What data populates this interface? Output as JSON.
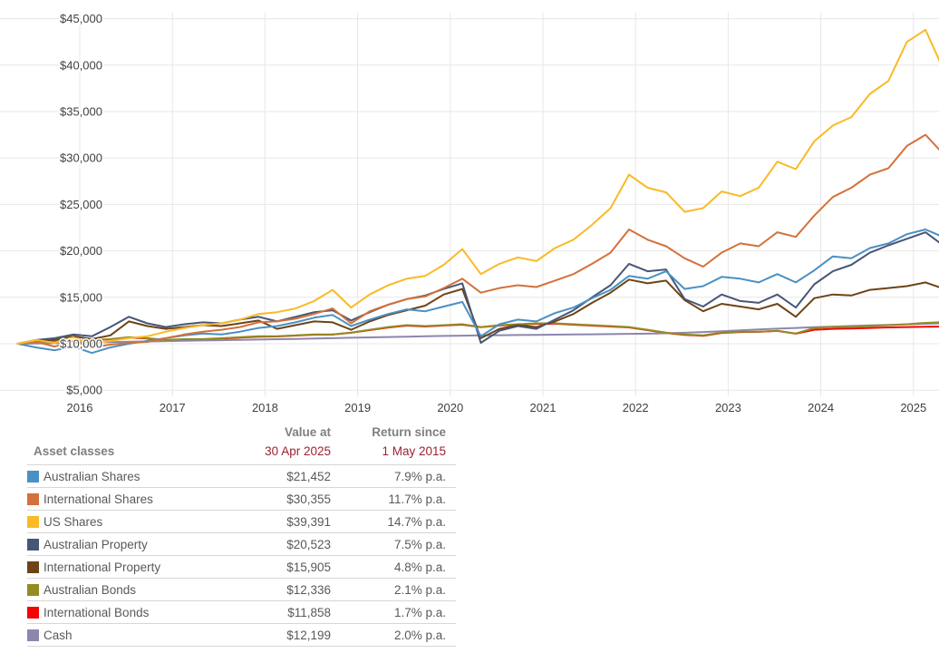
{
  "colors": {
    "grid": "#e7e7e7",
    "axis_text": "#404040",
    "table_text": "#595959",
    "header_gray": "#7f7f7f",
    "header_red": "#9c2130",
    "separator": "#d6d6d6"
  },
  "chart_data": {
    "type": "line",
    "title": "",
    "xlabel": "",
    "ylabel": "",
    "legend_position": "bottom-table",
    "grid": true,
    "x_axis": {
      "start_year": 2015.33,
      "step_years": 0.2,
      "tick_labels": [
        "2016",
        "2017",
        "2018",
        "2019",
        "2020",
        "2021",
        "2022",
        "2023",
        "2024",
        "2025"
      ],
      "tick_values": [
        2016,
        2017,
        2018,
        2019,
        2020,
        2021,
        2022,
        2023,
        2024,
        2025
      ]
    },
    "y_axis": {
      "tick_values": [
        5000,
        10000,
        15000,
        20000,
        25000,
        30000,
        35000,
        40000,
        45000
      ],
      "tick_prefix": "$",
      "ylim": [
        5000,
        45600
      ]
    },
    "series": [
      {
        "name": "Australian Shares",
        "color": "#4a90c4",
        "final_value": "$21,452",
        "return_pa": "7.9% p.a.",
        "values": [
          10000,
          9600,
          9300,
          9700,
          9000,
          9600,
          10000,
          10300,
          10600,
          10900,
          11100,
          11000,
          11300,
          11700,
          11900,
          12300,
          12800,
          13100,
          11900,
          12600,
          13200,
          13700,
          13500,
          14000,
          14500,
          10800,
          12100,
          12600,
          12400,
          13300,
          13900,
          14900,
          15800,
          17300,
          17000,
          17800,
          15900,
          16200,
          17200,
          17000,
          16600,
          17500,
          16600,
          17900,
          19400,
          19200,
          20300,
          20800,
          21800,
          22300,
          21452
        ]
      },
      {
        "name": "International Shares",
        "color": "#d4713b",
        "final_value": "$30,355",
        "return_pa": "11.7% p.a.",
        "values": [
          10000,
          10200,
          9700,
          10300,
          9600,
          9900,
          10100,
          10200,
          10600,
          11000,
          11300,
          11500,
          11800,
          12300,
          12400,
          12700,
          13200,
          13800,
          12200,
          13500,
          14200,
          14800,
          15100,
          16000,
          17000,
          15500,
          16000,
          16300,
          16100,
          16800,
          17500,
          18600,
          19800,
          22300,
          21200,
          20500,
          19200,
          18300,
          19800,
          20800,
          20500,
          22000,
          21500,
          23800,
          25800,
          26800,
          28200,
          28900,
          31300,
          32500,
          30355
        ]
      },
      {
        "name": "US Shares",
        "color": "#f9ba25",
        "final_value": "$39,391",
        "return_pa": "14.7% p.a.",
        "values": [
          10000,
          10400,
          10100,
          10700,
          9900,
          10300,
          10600,
          10800,
          11300,
          11700,
          12000,
          12200,
          12600,
          13200,
          13400,
          13800,
          14600,
          15800,
          13900,
          15300,
          16300,
          17000,
          17300,
          18500,
          20200,
          17500,
          18600,
          19300,
          18900,
          20300,
          21200,
          22800,
          24600,
          28200,
          26800,
          26300,
          24200,
          24600,
          26400,
          25900,
          26800,
          29600,
          28800,
          31800,
          33500,
          34400,
          36900,
          38300,
          42500,
          43800,
          39391
        ]
      },
      {
        "name": "Australian Property",
        "color": "#465677",
        "final_value": "$20,523",
        "return_pa": "7.5% p.a.",
        "values": [
          10000,
          10400,
          10600,
          11000,
          10800,
          11800,
          12900,
          12200,
          11800,
          12100,
          12300,
          12200,
          12600,
          12900,
          12400,
          12900,
          13400,
          13600,
          12500,
          13400,
          14200,
          14800,
          15200,
          15900,
          16500,
          10100,
          11400,
          11900,
          11600,
          12600,
          13600,
          15000,
          16300,
          18600,
          17800,
          18000,
          14800,
          14000,
          15300,
          14600,
          14400,
          15300,
          13900,
          16400,
          17800,
          18500,
          19800,
          20600,
          21300,
          22000,
          20523
        ]
      },
      {
        "name": "International Property",
        "color": "#6e4317",
        "final_value": "$15,905",
        "return_pa": "4.8% p.a.",
        "values": [
          10000,
          10300,
          10400,
          10800,
          10500,
          10900,
          12400,
          11900,
          11600,
          11800,
          12000,
          11900,
          12200,
          12500,
          11600,
          12000,
          12400,
          12300,
          11500,
          12400,
          13100,
          13600,
          14100,
          15300,
          15900,
          10600,
          11600,
          12000,
          11800,
          12400,
          13200,
          14400,
          15500,
          16900,
          16500,
          16800,
          14700,
          13500,
          14300,
          14000,
          13700,
          14300,
          12900,
          14900,
          15300,
          15200,
          15800,
          16000,
          16200,
          16600,
          15905
        ]
      },
      {
        "name": "Australian Bonds",
        "color": "#948b22",
        "final_value": "$12,336",
        "return_pa": "2.1% p.a.",
        "values": [
          10000,
          10200,
          10300,
          10300,
          10400,
          10500,
          10700,
          10600,
          10400,
          10500,
          10500,
          10600,
          10700,
          10800,
          10800,
          10900,
          11000,
          11000,
          11200,
          11500,
          11800,
          12000,
          11900,
          12000,
          12100,
          11800,
          12000,
          12100,
          12200,
          12200,
          12100,
          12000,
          11900,
          11800,
          11500,
          11200,
          11000,
          10900,
          11200,
          11300,
          11300,
          11400,
          11100,
          11700,
          11800,
          11800,
          11900,
          12000,
          12100,
          12250,
          12336
        ]
      },
      {
        "name": "International Bonds",
        "color": "#f40505",
        "final_value": "$11,858",
        "return_pa": "1.7% p.a.",
        "values": [
          10000,
          10150,
          10250,
          10280,
          10380,
          10480,
          10650,
          10560,
          10380,
          10460,
          10470,
          10560,
          10650,
          10760,
          10780,
          10880,
          10980,
          10990,
          11180,
          11460,
          11750,
          11950,
          11860,
          11960,
          12050,
          11780,
          11960,
          12060,
          12150,
          12160,
          12050,
          11950,
          11860,
          11760,
          11460,
          11160,
          10960,
          10860,
          11160,
          11260,
          11280,
          11380,
          11080,
          11500,
          11600,
          11640,
          11700,
          11760,
          11800,
          11830,
          11858
        ]
      },
      {
        "name": "Cash",
        "color": "#8b87ad",
        "final_value": "$12,199",
        "return_pa": "2.0% p.a.",
        "values": [
          10000,
          10030,
          10070,
          10100,
          10140,
          10170,
          10210,
          10240,
          10280,
          10310,
          10350,
          10380,
          10420,
          10450,
          10490,
          10520,
          10560,
          10600,
          10640,
          10680,
          10720,
          10760,
          10800,
          10840,
          10870,
          10900,
          10920,
          10940,
          10960,
          10980,
          11000,
          11020,
          11040,
          11060,
          11080,
          11120,
          11180,
          11260,
          11350,
          11440,
          11530,
          11620,
          11700,
          11780,
          11850,
          11910,
          11970,
          12030,
          12090,
          12150,
          12199
        ]
      }
    ],
    "draw_order": [
      6,
      7,
      5,
      4,
      3,
      0,
      1,
      2
    ]
  },
  "table": {
    "col1_header": "Asset classes",
    "col2_header": [
      "Value at",
      "30 Apr 2025"
    ],
    "col3_header": [
      "Return since",
      "1 May 2015"
    ],
    "rows": [
      {
        "label": "Australian Shares",
        "value": "$21,452",
        "return": "7.9% p.a.",
        "color": "#4a90c4"
      },
      {
        "label": "International Shares",
        "value": "$30,355",
        "return": "11.7% p.a.",
        "color": "#d4713b"
      },
      {
        "label": "US Shares",
        "value": "$39,391",
        "return": "14.7% p.a.",
        "color": "#f9ba25"
      },
      {
        "label": "Australian Property",
        "value": "$20,523",
        "return": "7.5% p.a.",
        "color": "#465677"
      },
      {
        "label": "International Property",
        "value": "$15,905",
        "return": "4.8% p.a.",
        "color": "#6e4317"
      },
      {
        "label": "Australian Bonds",
        "value": "$12,336",
        "return": "2.1% p.a.",
        "color": "#948b22"
      },
      {
        "label": "International Bonds",
        "value": "$11,858",
        "return": "1.7% p.a.",
        "color": "#f40505"
      },
      {
        "label": "Cash",
        "value": "$12,199",
        "return": "2.0% p.a.",
        "color": "#8b87ad"
      }
    ]
  }
}
